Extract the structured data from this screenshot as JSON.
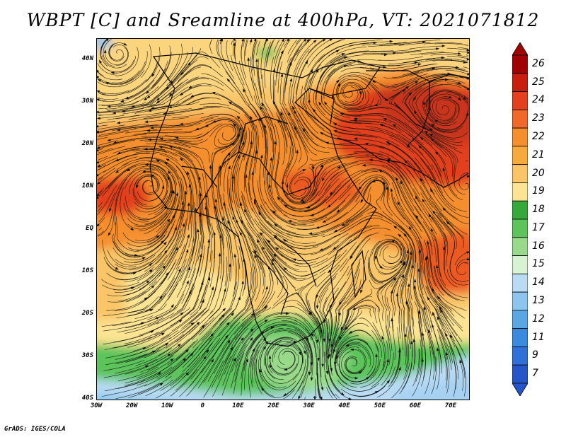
{
  "title": "WBPT [C] and Sreamline at 400hPa, VT: 2021071812",
  "credit": "GrADS: IGES/COLA",
  "map": {
    "projection": "lat-lon",
    "lon_range": [
      -30,
      75
    ],
    "lat_range": [
      -40,
      45
    ],
    "lat_labels": [
      "40N",
      "30N",
      "20N",
      "10N",
      "EQ",
      "10S",
      "20S",
      "30S",
      "40S"
    ],
    "lon_labels": [
      "30W",
      "20W",
      "10W",
      "0",
      "10E",
      "20E",
      "30E",
      "40E",
      "50E",
      "60E",
      "70E"
    ],
    "fields": [
      "wet-bulb potential temperature shading",
      "streamlines",
      "country boundaries"
    ]
  },
  "colorbar": {
    "labels": [
      "26",
      "25",
      "24",
      "23",
      "22",
      "21",
      "20",
      "19",
      "18",
      "17",
      "16",
      "15",
      "14",
      "13",
      "12",
      "11",
      "9",
      "7"
    ],
    "colors": [
      "#a00000",
      "#c81e0e",
      "#e2401e",
      "#f0682a",
      "#f58f2e",
      "#f7aa3c",
      "#f9c568",
      "#fde492",
      "#37a93a",
      "#5cc45a",
      "#98da8a",
      "#d7f3d2",
      "#b9dcf4",
      "#8cc5ee",
      "#5aa7e4",
      "#3a8be0",
      "#2f70d8",
      "#2456c9"
    ]
  }
}
